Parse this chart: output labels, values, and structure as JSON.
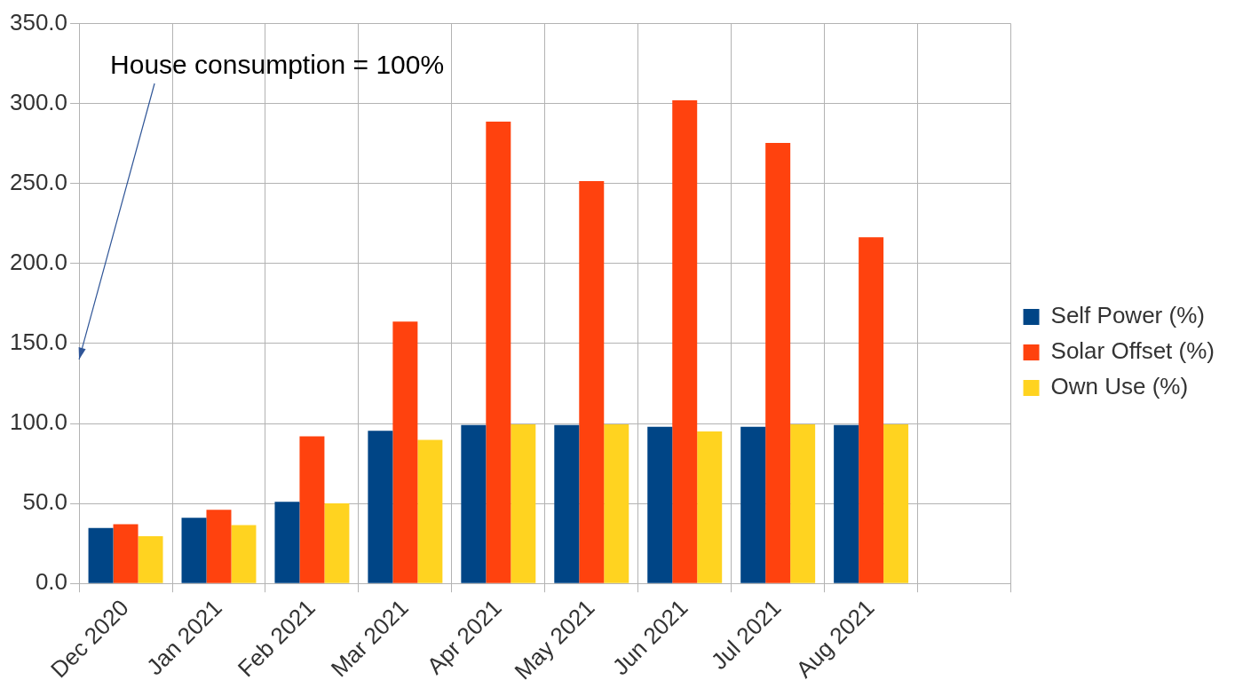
{
  "chart_data": {
    "type": "bar",
    "categories": [
      "Dec 2020",
      "Jan 2021",
      "Feb 2021",
      "Mar 2021",
      "Apr 2021",
      "May 2021",
      "Jun 2021",
      "Jul 2021",
      "Aug 2021",
      null
    ],
    "series": [
      {
        "name": "Self Power (%)",
        "color": "#004586",
        "values": [
          34.7,
          41,
          51,
          95.5,
          99,
          99,
          98,
          98,
          99,
          null
        ]
      },
      {
        "name": "Solar Offset (%)",
        "color": "#ff420e",
        "values": [
          37,
          46,
          92,
          163.7,
          288.7,
          251.6,
          302,
          275.4,
          216.4,
          null
        ]
      },
      {
        "name": "Own Use (%)",
        "color": "#ffd320",
        "values": [
          29.5,
          36.5,
          50,
          89.7,
          99.5,
          99.5,
          95,
          99.5,
          99.5,
          null
        ]
      }
    ],
    "ylim": [
      0,
      350
    ],
    "yticks": [
      {
        "value": 0,
        "label": "0.0"
      },
      {
        "value": 50,
        "label": "50.0"
      },
      {
        "value": 100,
        "label": "100.0"
      },
      {
        "value": 150,
        "label": "150.0"
      },
      {
        "value": 200,
        "label": "200.0"
      },
      {
        "value": 250,
        "label": "250.0"
      },
      {
        "value": 300,
        "label": "300.0"
      },
      {
        "value": 350,
        "label": "350.0"
      }
    ],
    "grid": true,
    "legend": "right",
    "annotations": [
      "House consumption = 100%"
    ]
  }
}
